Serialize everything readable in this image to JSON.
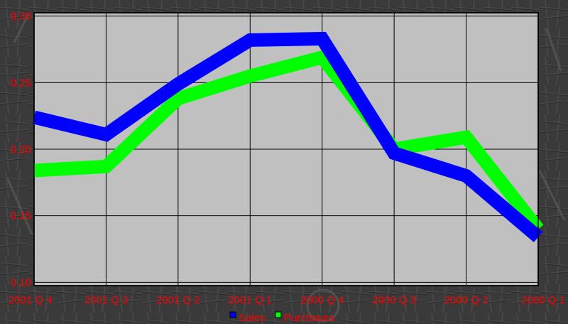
{
  "chart_data": {
    "type": "line",
    "categories": [
      "2001 Q 4",
      "2001 Q 3",
      "2001 Q 2",
      "2001 Q 1",
      "2000 Q 4",
      "2000 Q 3",
      "2000 Q 2",
      "2000 Q 1"
    ],
    "series": [
      {
        "name": "Sales",
        "color": "#0000ff",
        "values": [
          0.224,
          0.211,
          0.249,
          0.282,
          0.283,
          0.197,
          0.18,
          0.134
        ]
      },
      {
        "name": "Purchases",
        "color": "#00ff00",
        "values": [
          0.184,
          0.187,
          0.238,
          0.255,
          0.269,
          0.2,
          0.209,
          0.14
        ]
      }
    ],
    "y_ticks": [
      "0.10",
      "0.15",
      "0.20",
      "0.25",
      "0.30"
    ],
    "ylim": [
      0.0975,
      0.3025
    ],
    "grid": true,
    "legend": "bottom-center",
    "plot_background": "#c0c0c0",
    "tick_label_color": "#ff0000"
  }
}
